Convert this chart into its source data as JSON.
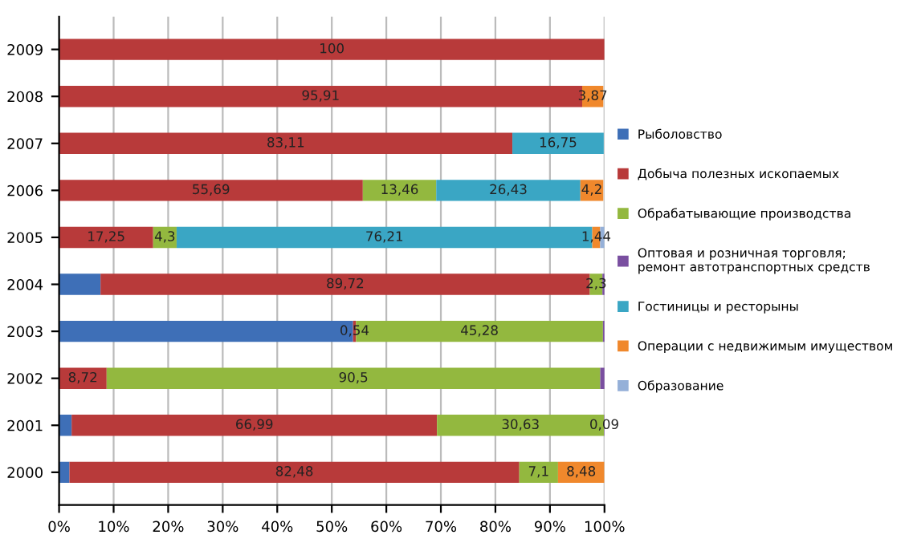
{
  "chart_data": {
    "type": "bar",
    "orientation": "horizontal",
    "stacked": true,
    "categories": [
      "2009",
      "2008",
      "2007",
      "2006",
      "2005",
      "2004",
      "2003",
      "2002",
      "2001",
      "2000"
    ],
    "series": [
      {
        "name": "Рыболовство",
        "color": "#3e6fb7",
        "values": [
          0,
          0,
          0,
          0,
          0,
          7.6,
          53.9,
          0,
          2.3,
          1.9
        ],
        "value_labels": [
          null,
          null,
          null,
          null,
          null,
          null,
          null,
          null,
          null,
          null
        ]
      },
      {
        "name": "Добыча полезных ископаемых",
        "color": "#b83a3a",
        "values": [
          100,
          95.91,
          83.11,
          55.69,
          17.25,
          89.72,
          0.54,
          8.72,
          66.99,
          82.48
        ],
        "value_labels": [
          "100",
          "95,91",
          "83,11",
          "55,69",
          "17,25",
          "89,72",
          "0,54",
          "8,72",
          "66,99",
          "82,48"
        ]
      },
      {
        "name": "Обрабатывающие производства",
        "color": "#93b83f",
        "values": [
          0,
          0,
          0,
          13.46,
          4.3,
          2.3,
          45.28,
          90.5,
          30.63,
          7.1
        ],
        "value_labels": [
          null,
          null,
          null,
          "13,46",
          "4,3",
          "2,3",
          "45,28",
          "90,5",
          "30,63",
          "7,1"
        ]
      },
      {
        "name": "Оптовая и розничная торговля; ремонт автотранспортных средств",
        "color": "#7a4fa0",
        "values": [
          0,
          0,
          0,
          0,
          0,
          0.4,
          0.3,
          0.8,
          0.09,
          0
        ],
        "value_labels": [
          null,
          null,
          null,
          null,
          null,
          null,
          null,
          null,
          "0,09",
          null
        ]
      },
      {
        "name": "Гостиницы и ресторыны",
        "color": "#3aa6c4",
        "values": [
          0,
          0,
          16.75,
          26.43,
          76.21,
          0,
          0,
          0,
          0,
          0
        ],
        "value_labels": [
          null,
          null,
          "16,75",
          "26,43",
          "76,21",
          null,
          null,
          null,
          null,
          null
        ]
      },
      {
        "name": "Операции с недвижимым имуществом",
        "color": "#f0882c",
        "values": [
          0,
          3.87,
          0,
          4.2,
          1.44,
          0,
          0,
          0,
          0,
          8.48
        ],
        "value_labels": [
          null,
          "3,87",
          null,
          "4,2",
          "1,44",
          null,
          null,
          null,
          null,
          "8,48"
        ]
      },
      {
        "name": "Образование",
        "color": "#95b0d8",
        "values": [
          null,
          null,
          null,
          null,
          0.8,
          null,
          null,
          null,
          null,
          null
        ],
        "value_labels": [
          null,
          null,
          null,
          null,
          null,
          null,
          null,
          null,
          null,
          null
        ]
      }
    ],
    "xlim": [
      0,
      100
    ],
    "xticks": [
      {
        "value": 0,
        "label": "0%"
      },
      {
        "value": 10,
        "label": "10%"
      },
      {
        "value": 20,
        "label": "20%"
      },
      {
        "value": 30,
        "label": "30%"
      },
      {
        "value": 40,
        "label": "40%"
      },
      {
        "value": 50,
        "label": "50%"
      },
      {
        "value": 60,
        "label": "60%"
      },
      {
        "value": 70,
        "label": "70%"
      },
      {
        "value": 80,
        "label": "80%"
      },
      {
        "value": 90,
        "label": "90%"
      },
      {
        "value": 100,
        "label": "100%"
      }
    ],
    "grid": "x",
    "legend": "right"
  }
}
